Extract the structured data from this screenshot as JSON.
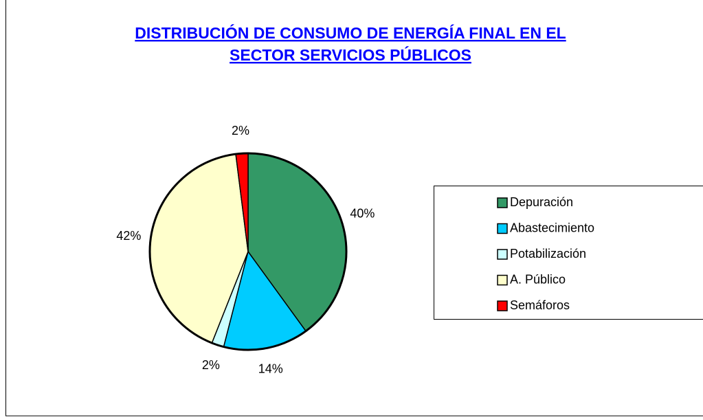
{
  "chart_data": {
    "type": "pie",
    "title": [
      "DISTRIBUCIÓN DE CONSUMO DE ENERGÍA FINAL EN EL",
      "SECTOR SERVICIOS PÚBLICOS"
    ],
    "categories": [
      "Depuración",
      "Abastecimiento",
      "Potabilización",
      "A. Público",
      "Semáforos"
    ],
    "values": [
      40,
      14,
      2,
      42,
      2
    ],
    "value_labels": [
      "40%",
      "14%",
      "2%",
      "42%",
      "2%"
    ],
    "colors": [
      "#339966",
      "#00ccff",
      "#ccffff",
      "#ffffcc",
      "#ff0000"
    ],
    "legend": "right"
  }
}
